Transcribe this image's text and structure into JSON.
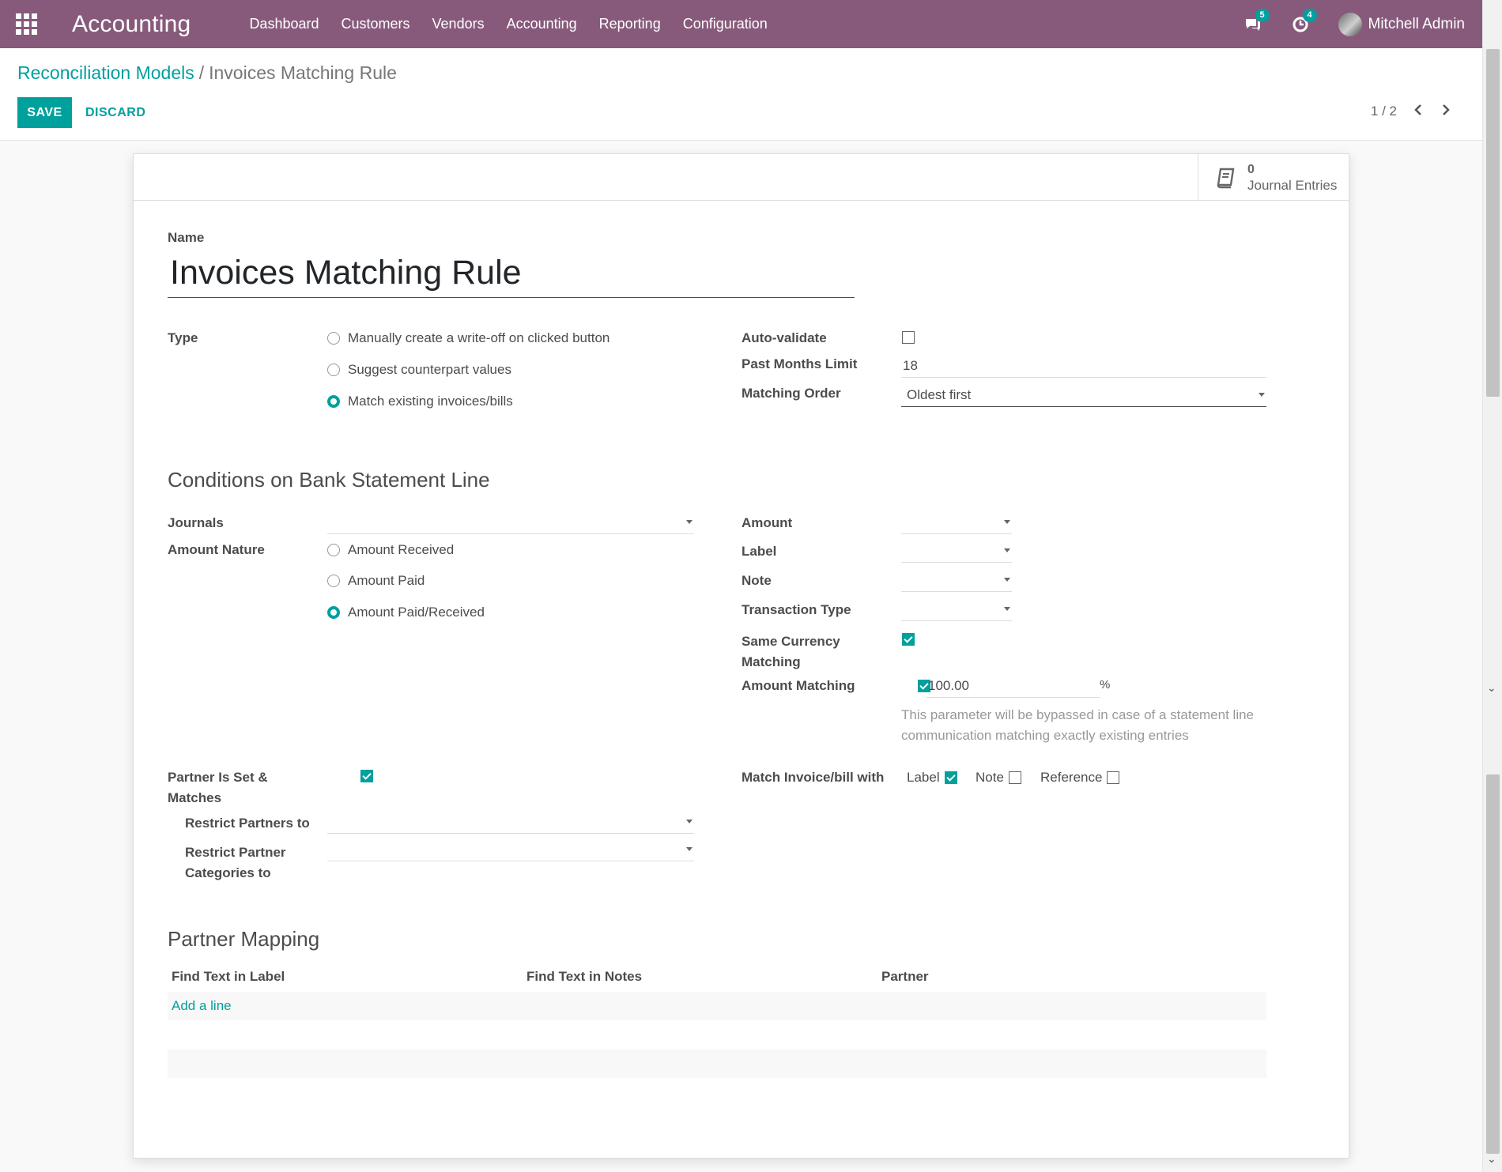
{
  "nav": {
    "app_title": "Accounting",
    "menu": [
      "Dashboard",
      "Customers",
      "Vendors",
      "Accounting",
      "Reporting",
      "Configuration"
    ],
    "messages_badge": "5",
    "activities_badge": "4",
    "user": "Mitchell Admin"
  },
  "breadcrumb": {
    "parent": "Reconciliation Models",
    "separator": "/",
    "current": "Invoices Matching Rule"
  },
  "actions": {
    "save": "SAVE",
    "discard": "DISCARD"
  },
  "pager": {
    "value": "1 / 2"
  },
  "stat": {
    "value": "0",
    "label": "Journal Entries"
  },
  "form": {
    "name_label": "Name",
    "name_value": "Invoices Matching Rule",
    "type_label": "Type",
    "type_options": [
      "Manually create a write-off on clicked button",
      "Suggest counterpart values",
      "Match existing invoices/bills"
    ],
    "type_selected": 2,
    "auto_validate_label": "Auto-validate",
    "auto_validate": false,
    "past_months_label": "Past Months Limit",
    "past_months_value": "18",
    "matching_order_label": "Matching Order",
    "matching_order_value": "Oldest first",
    "conditions_title": "Conditions on Bank Statement Line",
    "journals_label": "Journals",
    "amount_nature_label": "Amount Nature",
    "amount_nature_options": [
      "Amount Received",
      "Amount Paid",
      "Amount Paid/Received"
    ],
    "amount_nature_selected": 2,
    "amount_label": "Amount",
    "label_label": "Label",
    "note_label": "Note",
    "transaction_type_label": "Transaction Type",
    "same_currency_label_1": "Same Currency",
    "same_currency_label_2": "Matching",
    "same_currency": true,
    "amount_matching_label": "Amount Matching",
    "amount_matching": true,
    "amount_matching_value": "100.00",
    "amount_matching_unit": "%",
    "amount_matching_help_1": "This parameter will be bypassed in case of a statement line",
    "amount_matching_help_2": "communication matching exactly existing entries",
    "partner_set_label_1": "Partner Is Set &",
    "partner_set_label_2": "Matches",
    "partner_set": true,
    "restrict_partners_label": "Restrict Partners to",
    "restrict_categories_label_1": "Restrict Partner",
    "restrict_categories_label_2": "Categories to",
    "match_with_label": "Match Invoice/bill with",
    "match_with_label_opt": "Label",
    "match_with_label_checked": true,
    "match_with_note_opt": "Note",
    "match_with_note_checked": false,
    "match_with_ref_opt": "Reference",
    "match_with_ref_checked": false
  },
  "partner_mapping": {
    "title": "Partner Mapping",
    "columns": [
      "Find Text in Label",
      "Find Text in Notes",
      "Partner"
    ],
    "add_line": "Add a line"
  },
  "colors": {
    "brand": "#875a7b",
    "accent": "#00a09d"
  },
  "icons": {
    "apps": "apps-grid-icon",
    "messages": "chat-icon",
    "activities": "clock-icon",
    "journal": "book-icon"
  }
}
